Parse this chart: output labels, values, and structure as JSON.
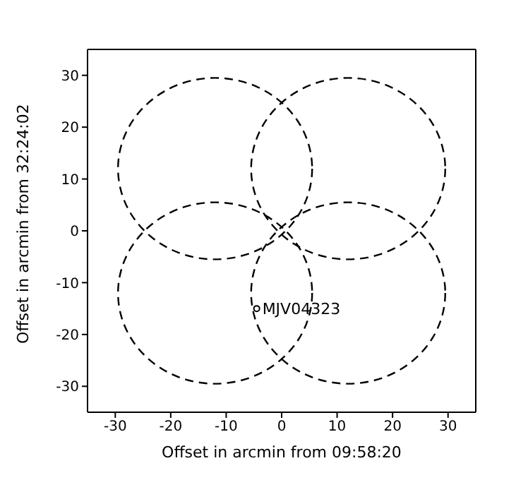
{
  "chart_data": {
    "type": "scatter",
    "xlabel": "Offset in arcmin from 09:58:20",
    "ylabel": "Offset in arcmin from 32:24:02",
    "xlim": [
      -35,
      35
    ],
    "ylim": [
      -35,
      35
    ],
    "xticks": [
      -30,
      -20,
      -10,
      0,
      10,
      20,
      30
    ],
    "yticks": [
      -30,
      -20,
      -10,
      0,
      10,
      20,
      30
    ],
    "grid": false,
    "marker": "circle",
    "series": [
      {
        "color": "#000000",
        "x": [
          -4.5
        ],
        "values": [
          -15
        ]
      }
    ],
    "annotations": [
      {
        "text": "MJV04323",
        "x": -4.5,
        "y": -15
      }
    ]
  }
}
